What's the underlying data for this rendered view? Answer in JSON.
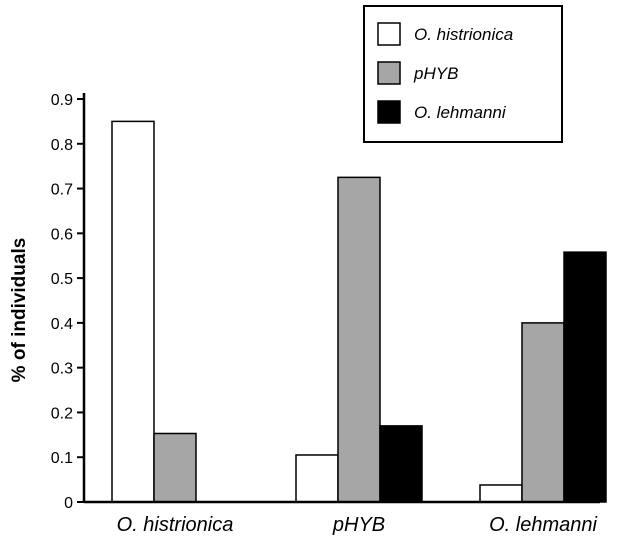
{
  "chart_data": {
    "type": "bar",
    "title": "",
    "xlabel": "",
    "ylabel": "% of individuals",
    "ylim": [
      0,
      0.9
    ],
    "yticks": [
      "0",
      "0.1",
      "0.2",
      "0.3",
      "0.4",
      "0.5",
      "0.6",
      "0.7",
      "0.8",
      "0.9"
    ],
    "categories": [
      "O. histrionica",
      "pHYB",
      "O. lehmanni"
    ],
    "series": [
      {
        "name": "O. histrionica",
        "color": "#ffffff",
        "values": [
          0.85,
          0.105,
          0.038
        ]
      },
      {
        "name": "pHYB",
        "color": "#a6a6a6",
        "values": [
          0.153,
          0.725,
          0.4
        ]
      },
      {
        "name": "O. lehmanni",
        "color": "#000000",
        "values": [
          0.0,
          0.17,
          0.558
        ]
      }
    ],
    "grid": false,
    "legend_position": "top-right"
  }
}
